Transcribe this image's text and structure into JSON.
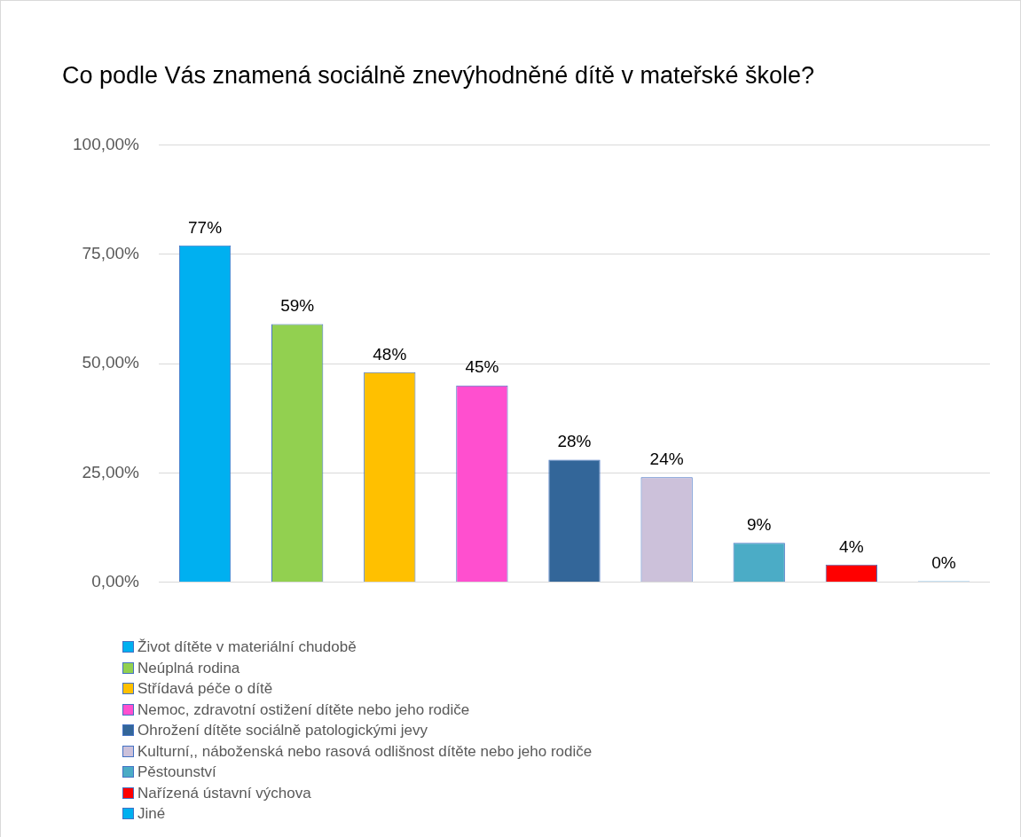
{
  "chart_data": {
    "type": "bar",
    "title": "Co podle Vás znamená sociálně znevýhodněné dítě v mateřské škole?",
    "categories": [
      null
    ],
    "series": [
      {
        "name": "Život dítěte v materiální chudobě",
        "color": "#00b0f0",
        "values": [
          77
        ],
        "value_labels": [
          "77%"
        ]
      },
      {
        "name": "Neúplná rodina",
        "color": "#92d050",
        "values": [
          59
        ],
        "value_labels": [
          "59%"
        ]
      },
      {
        "name": "Střídavá péče o dítě",
        "color": "#ffc000",
        "values": [
          48
        ],
        "value_labels": [
          "48%"
        ]
      },
      {
        "name": "Nemoc, zdravotní ostižení dítěte nebo jeho rodiče",
        "color": "#ff4fcf",
        "values": [
          45
        ],
        "value_labels": [
          "45%"
        ]
      },
      {
        "name": "Ohrožení dítěte sociálně patologickými jevy",
        "color": "#336699",
        "values": [
          28
        ],
        "value_labels": [
          "28%"
        ]
      },
      {
        "name": "Kulturní,, náboženská nebo rasová odlišnost dítěte nebo jeho rodiče",
        "color": "#ccc1da",
        "values": [
          24
        ],
        "value_labels": [
          "24%"
        ]
      },
      {
        "name": "Pěstounství",
        "color": "#4bacc6",
        "values": [
          9
        ],
        "value_labels": [
          "9%"
        ]
      },
      {
        "name": "Nařízená ústavní výchova",
        "color": "#ff0000",
        "values": [
          4
        ],
        "value_labels": [
          "4%"
        ]
      },
      {
        "name": "Jiné",
        "color": "#00b0f0",
        "values": [
          0
        ],
        "value_labels": [
          "0%"
        ]
      }
    ],
    "ylim": [
      0,
      100
    ],
    "yticks": [
      {
        "value": 0,
        "label": "0,00%"
      },
      {
        "value": 25,
        "label": "25,00%"
      },
      {
        "value": 50,
        "label": "50,00%"
      },
      {
        "value": 75,
        "label": "75,00%"
      },
      {
        "value": 100,
        "label": "100,00%"
      }
    ],
    "grid": "y",
    "legend": "bottom"
  }
}
